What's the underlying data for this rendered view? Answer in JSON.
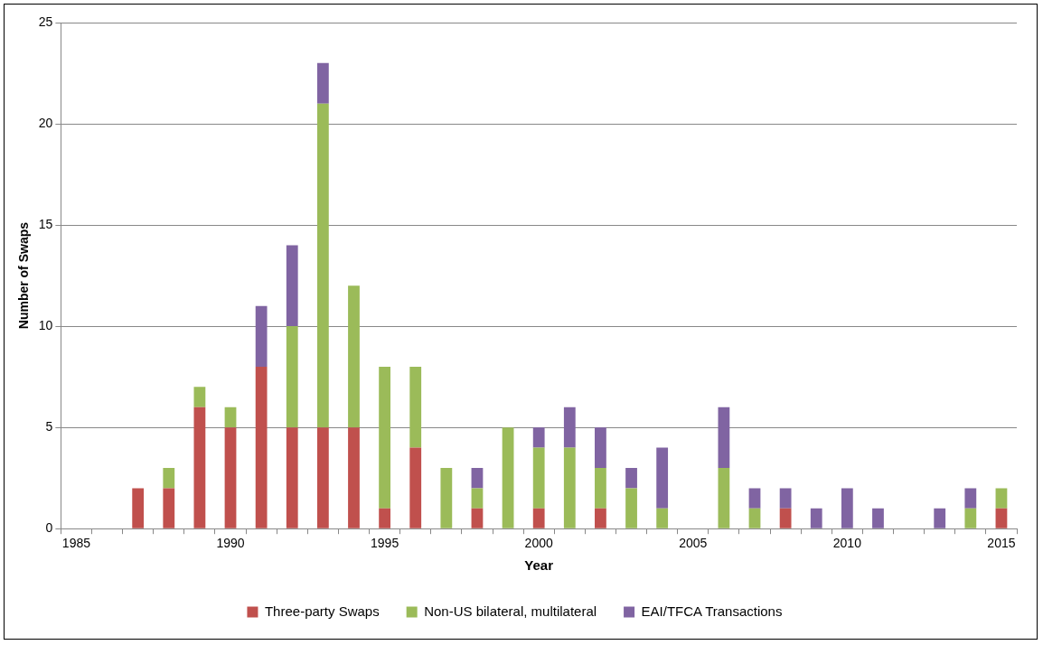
{
  "chart_data": {
    "type": "bar",
    "xlabel": "Year",
    "ylabel": "Number of Swaps",
    "stacked": true,
    "grid": "y",
    "legend": "bottom",
    "categories": [
      "1985",
      null,
      null,
      null,
      null,
      "1990",
      null,
      null,
      null,
      null,
      "1995",
      null,
      null,
      null,
      null,
      "2000",
      null,
      null,
      null,
      null,
      "2005",
      null,
      null,
      null,
      null,
      "2010",
      null,
      null,
      null,
      null,
      "2015"
    ],
    "ylim": [
      0,
      25
    ],
    "yticks": [
      0,
      5,
      10,
      15,
      20,
      25
    ],
    "series": [
      {
        "name": "Three-party Swaps",
        "color": "#c0504d",
        "values": [
          0,
          0,
          2,
          2,
          6,
          5,
          8,
          5,
          5,
          5,
          1,
          4,
          0,
          1,
          0,
          1,
          0,
          1,
          0,
          0,
          0,
          0,
          0,
          1,
          0,
          0,
          0,
          0,
          0,
          0,
          1
        ]
      },
      {
        "name": "Non-US bilateral, multilateral",
        "color": "#9bbb59",
        "values": [
          0,
          0,
          0,
          1,
          1,
          1,
          0,
          5,
          16,
          7,
          7,
          4,
          3,
          1,
          5,
          3,
          4,
          2,
          2,
          1,
          0,
          3,
          1,
          0,
          0,
          0,
          0,
          0,
          0,
          1,
          1
        ]
      },
      {
        "name": "EAI/TFCA Transactions",
        "color": "#8064a2",
        "values": [
          0,
          0,
          0,
          0,
          0,
          0,
          3,
          4,
          2,
          0,
          0,
          0,
          0,
          1,
          0,
          1,
          2,
          2,
          1,
          3,
          0,
          3,
          1,
          1,
          1,
          2,
          1,
          0,
          1,
          1,
          0
        ]
      }
    ]
  }
}
